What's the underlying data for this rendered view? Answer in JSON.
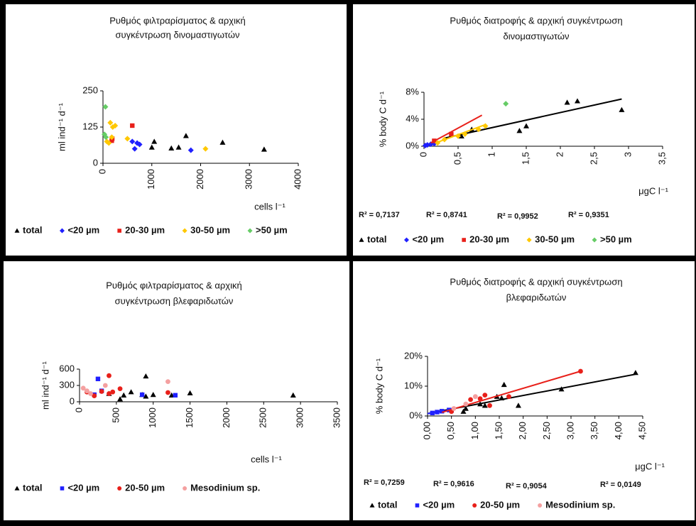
{
  "chart_data": [
    {
      "type": "scatter",
      "title": [
        "Ρυθμός φιλτραρίσματος & αρχική",
        "συγκέντρωση δινομαστιγωτών"
      ],
      "x_label": "cells l⁻¹",
      "y_label": "ml ind⁻¹ d⁻¹",
      "xlim": [
        0,
        4000
      ],
      "xticks": [
        0,
        1000,
        2000,
        3000,
        4000
      ],
      "ylim": [
        0,
        250
      ],
      "yticks": [
        0,
        125,
        250
      ],
      "series": [
        {
          "name": "total",
          "color": "#000000",
          "marker": "triangle",
          "x": [
            1000,
            1050,
            1400,
            1550,
            1700,
            2450,
            3300
          ],
          "values": [
            55,
            75,
            52,
            55,
            95,
            72,
            48
          ]
        },
        {
          "name": "<20 µm",
          "color": "#2020ff",
          "marker": "diamond",
          "x": [
            600,
            650,
            700,
            750,
            1800
          ],
          "values": [
            75,
            50,
            70,
            65,
            45
          ]
        },
        {
          "name": "20-30 µm",
          "color": "#e8201a",
          "marker": "square",
          "x": [
            600,
            180,
            190
          ],
          "values": [
            130,
            78,
            85
          ]
        },
        {
          "name": "30-50 µm",
          "color": "#ffc800",
          "marker": "diamond",
          "x": [
            80,
            120,
            150,
            200,
            250,
            180,
            500,
            2100
          ],
          "values": [
            75,
            70,
            140,
            125,
            130,
            90,
            85,
            50
          ]
        },
        {
          "name": ">50 µm",
          "color": "#66cc66",
          "marker": "diamond",
          "x": [
            50,
            30,
            60
          ],
          "values": [
            195,
            100,
            90
          ]
        }
      ]
    },
    {
      "type": "scatter",
      "title": [
        "Ρυθμός διατροφής & αρχική συγκέντρωση",
        "δινομαστιγωτών"
      ],
      "x_label": "μgC l⁻¹",
      "y_label": "% body C d⁻¹",
      "xlim": [
        0,
        3.5
      ],
      "xticks": [
        0,
        {
          "value": 0.5,
          "label": "0,5"
        },
        1,
        {
          "value": 1.5,
          "label": "1,5"
        },
        2,
        {
          "value": 2.5,
          "label": "2,5"
        },
        3,
        {
          "value": 3.5,
          "label": "3,5"
        }
      ],
      "ylim": [
        0,
        8
      ],
      "yticks": [
        {
          "value": 0,
          "label": "0%"
        },
        {
          "value": 4,
          "label": "4%"
        },
        {
          "value": 8,
          "label": "8%"
        }
      ],
      "annotations": [
        "R² = 0,7137",
        "R² = 0,8741",
        "R² = 0,9952",
        "R² = 0,9351"
      ],
      "series": [
        {
          "name": "total",
          "color": "#000000",
          "marker": "triangle",
          "x": [
            0.55,
            0.7,
            1.4,
            1.5,
            2.1,
            2.25,
            2.9
          ],
          "values": [
            1.5,
            2.5,
            2.3,
            3.0,
            6.5,
            6.7,
            5.4
          ],
          "trend": {
            "x": [
              0.3,
              2.9
            ],
            "y": [
              1.2,
              7.0
            ]
          }
        },
        {
          "name": "<20 µm",
          "color": "#2020ff",
          "marker": "diamond",
          "x": [
            0.02,
            0.05,
            0.1,
            0.15
          ],
          "values": [
            0.1,
            0.2,
            0.3,
            0.4
          ],
          "trend": {
            "x": [
              0,
              0.15
            ],
            "y": [
              0.05,
              0.45
            ]
          }
        },
        {
          "name": "20-30 µm",
          "color": "#e8201a",
          "marker": "square",
          "x": [
            0.15,
            0.4
          ],
          "values": [
            0.8,
            1.8
          ],
          "trend": {
            "x": [
              0.1,
              0.85
            ],
            "y": [
              0.5,
              4.6
            ]
          }
        },
        {
          "name": "30-50 µm",
          "color": "#ffc800",
          "marker": "diamond",
          "x": [
            0.2,
            0.3,
            0.5,
            0.6,
            0.8,
            0.9
          ],
          "values": [
            0.5,
            1.0,
            1.5,
            1.8,
            2.5,
            3.0
          ],
          "trend": {
            "x": [
              0.2,
              0.9
            ],
            "y": [
              0.6,
              3.2
            ]
          }
        },
        {
          "name": ">50 µm",
          "color": "#66cc66",
          "marker": "diamond",
          "x": [
            1.2
          ],
          "values": [
            6.3
          ]
        }
      ]
    },
    {
      "type": "scatter",
      "title": [
        "Ρυθμός φιλτραρίσματος & αρχική",
        "συγκέντρωση βλεφαριδωτών"
      ],
      "x_label": "cells l⁻¹",
      "y_label": "ml ind⁻¹ d⁻¹",
      "xlim": [
        0,
        3500
      ],
      "xticks": [
        0,
        500,
        1000,
        1500,
        2000,
        2500,
        3000,
        3500
      ],
      "ylim": [
        0,
        600
      ],
      "yticks": [
        0,
        300,
        600
      ],
      "series": [
        {
          "name": "total",
          "color": "#000000",
          "marker": "triangle",
          "x": [
            400,
            550,
            600,
            700,
            850,
            900,
            900,
            1000,
            1250,
            1500,
            2900
          ],
          "values": [
            150,
            50,
            120,
            180,
            130,
            470,
            100,
            130,
            120,
            160,
            120
          ]
        },
        {
          "name": "<20 µm",
          "color": "#2020ff",
          "marker": "square",
          "x": [
            200,
            250,
            300,
            850,
            1300
          ],
          "values": [
            130,
            420,
            200,
            130,
            120
          ]
        },
        {
          "name": "20-50 µm",
          "color": "#e8201a",
          "marker": "circle",
          "x": [
            100,
            200,
            300,
            400,
            400,
            450,
            550,
            1200
          ],
          "values": [
            180,
            110,
            190,
            150,
            480,
            180,
            240,
            170
          ]
        },
        {
          "name": "Mesodinium sp.",
          "color": "#f4a0a0",
          "marker": "circle",
          "x": [
            50,
            100,
            150,
            350,
            1200
          ],
          "values": [
            250,
            200,
            150,
            300,
            370
          ]
        }
      ]
    },
    {
      "type": "scatter",
      "title": [
        "Ρυθμός διατροφής & αρχική συγκέντρωση",
        "βλεφαριδωτών"
      ],
      "x_label": "μgC l⁻¹",
      "y_label": "% body C d⁻¹",
      "xlim": [
        0,
        4.5
      ],
      "xticks": [
        {
          "value": 0,
          "label": "0,00"
        },
        {
          "value": 0.5,
          "label": "0,50"
        },
        {
          "value": 1,
          "label": "1,00"
        },
        {
          "value": 1.5,
          "label": "1,50"
        },
        {
          "value": 2,
          "label": "2,00"
        },
        {
          "value": 2.5,
          "label": "2,50"
        },
        {
          "value": 3,
          "label": "3,00"
        },
        {
          "value": 3.5,
          "label": "3,50"
        },
        {
          "value": 4,
          "label": "4,00"
        },
        {
          "value": 4.5,
          "label": "4,50"
        }
      ],
      "ylim": [
        0,
        20
      ],
      "yticks": [
        {
          "value": 0,
          "label": "0%"
        },
        {
          "value": 10,
          "label": "10%"
        },
        {
          "value": 20,
          "label": "20%"
        }
      ],
      "annotations": [
        "R² = 0,7259",
        "R² = 0,9616",
        "R² = 0,9054",
        "R² = 0,0149"
      ],
      "series": [
        {
          "name": "total",
          "color": "#000000",
          "marker": "triangle",
          "x": [
            0.75,
            0.8,
            1.1,
            1.2,
            1.45,
            1.55,
            1.6,
            1.9,
            2.8,
            4.35
          ],
          "values": [
            1.5,
            2.5,
            4.0,
            3.5,
            6.5,
            6.0,
            10.5,
            3.5,
            9.0,
            14.5
          ],
          "trend": {
            "x": [
              0,
              4.35
            ],
            "y": [
              0.8,
              14
            ]
          }
        },
        {
          "name": "<20 µm",
          "color": "#2020ff",
          "marker": "square",
          "x": [
            0.1,
            0.2,
            0.3,
            0.45,
            0.5
          ],
          "values": [
            1.0,
            1.3,
            1.6,
            2.0,
            1.8
          ],
          "trend": {
            "x": [
              0,
              0.5
            ],
            "y": [
              0.8,
              2.0
            ]
          }
        },
        {
          "name": "20-50 µm",
          "color": "#e8201a",
          "marker": "circle",
          "x": [
            0.5,
            0.9,
            1.1,
            1.2,
            1.3,
            1.7,
            3.2
          ],
          "values": [
            1.5,
            5.5,
            5.8,
            7.0,
            3.5,
            6.5,
            15.0
          ],
          "trend": {
            "x": [
              0.3,
              3.2
            ],
            "y": [
              1.2,
              15
            ]
          }
        },
        {
          "name": "Mesodinium sp.",
          "color": "#f4a0a0",
          "marker": "circle",
          "x": [
            0.55,
            0.8,
            1.0
          ],
          "values": [
            2.5,
            4.0,
            6.5
          ]
        }
      ]
    }
  ]
}
